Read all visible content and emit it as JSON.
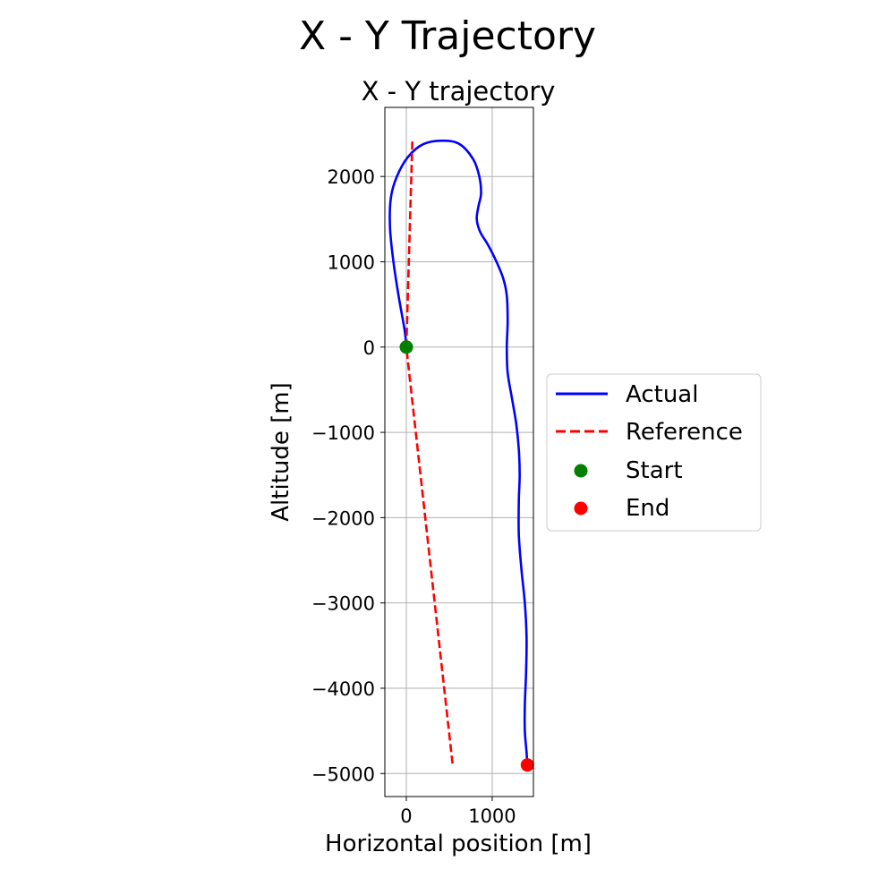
{
  "figure": {
    "suptitle": "X - Y Trajectory"
  },
  "chart_data": {
    "type": "line",
    "title": "X - Y trajectory",
    "xlabel": "Horizontal position [m]",
    "ylabel": "Altitude [m]",
    "xlim": [
      -250,
      1480
    ],
    "ylim": [
      -5270,
      2810
    ],
    "xticks": [
      0,
      1000
    ],
    "xtick_labels": [
      "0",
      "1000"
    ],
    "yticks": [
      2000,
      1000,
      0,
      -1000,
      -2000,
      -3000,
      -4000,
      -5000
    ],
    "ytick_labels": [
      "2000",
      "1000",
      "0",
      "−1000",
      "−2000",
      "−3000",
      "−4000",
      "−5000"
    ],
    "grid": true,
    "legend_position": "right",
    "colors": {
      "actual": "#0000ff",
      "reference": "#ff0000",
      "start": "#008000",
      "end": "#ff0000",
      "grid": "#b0b0b0"
    },
    "series": [
      {
        "name": "Actual",
        "style": "solid",
        "x": [
          0,
          -20,
          -90,
          -150,
          -190,
          -180,
          -110,
          20,
          200,
          420,
          620,
          780,
          850,
          870,
          840,
          820,
          860,
          950,
          1050,
          1130,
          1170,
          1180,
          1170,
          1180,
          1230,
          1280,
          1310,
          1320,
          1310,
          1310,
          1340,
          1380,
          1400,
          1395,
          1380,
          1380,
          1400,
          1410
        ],
        "y": [
          0,
          200,
          600,
          1000,
          1400,
          1750,
          2000,
          2230,
          2380,
          2420,
          2380,
          2200,
          2000,
          1800,
          1650,
          1500,
          1350,
          1200,
          1000,
          800,
          600,
          300,
          0,
          -300,
          -600,
          -900,
          -1200,
          -1500,
          -1800,
          -2200,
          -2600,
          -3000,
          -3400,
          -3800,
          -4200,
          -4500,
          -4750,
          -4900
        ]
      },
      {
        "name": "Reference",
        "style": "dashed",
        "x": [
          70,
          0,
          540
        ],
        "y": [
          2410,
          0,
          -4900
        ]
      }
    ],
    "markers": [
      {
        "name": "Start",
        "x": 0,
        "y": 0
      },
      {
        "name": "End",
        "x": 1410,
        "y": -4900
      }
    ]
  }
}
